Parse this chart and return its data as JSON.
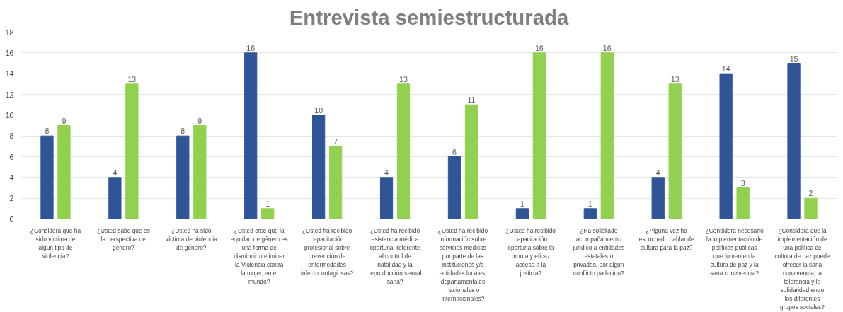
{
  "chart_data": {
    "type": "bar",
    "title": "Entrevista semiestructurada",
    "categories": [
      "¿Considera que ha sido víctima de algún tipo de violencia?",
      "¿Usted sabe que es la perspectiva de género?",
      "¿Usted ha sido víctima de violencia de género?",
      "¿Usted cree que la equidad de género es una forma de disminuir o eliminar la Violencia contra la mujer, en el mundo?",
      "¿Usted ha recibido capacitación profesional sobre prevención de enfermedades infectocontagiosas?",
      "¿Usted ha recibido asistencia médica oportuna, referente al control de natalidad y la reproducción sexual sana?",
      "¿Usted ha recibido información sobre servicios médicos por parte de las instituciones y/o entidades locales, departamentales nacionales o internacionales?",
      "¿Usted ha recibido capacitación oportuna sobre la pronta y eficaz acceso a la justicia?",
      "¿Ha solicitado acompañamiento jurídico a entidades estatales o privadas, por algún conflicto padecido?",
      "¿Alguna vez ha escuchado hablar de cultura para la paz?",
      "¿Considera necesario la implementación de políticas públicas que fomenten la cultura de paz y la sana convivencia?",
      "¿Considera que la implementación de una política de cultura de paz puede ofrecer la sana convivencia, la tolerancia y la solidaridad entre los diferentes grupos sociales?"
    ],
    "series": [
      {
        "color": "#2f5597",
        "values": [
          8,
          4,
          8,
          16,
          10,
          4,
          6,
          1,
          1,
          4,
          14,
          15
        ]
      },
      {
        "color": "#92d050",
        "values": [
          9,
          13,
          9,
          1,
          7,
          13,
          11,
          16,
          16,
          13,
          3,
          2
        ]
      }
    ],
    "ylim": [
      0,
      18
    ],
    "yticks": [
      0,
      2,
      4,
      6,
      8,
      10,
      12,
      14,
      16,
      18
    ],
    "grid": "y",
    "data_labels": true
  }
}
